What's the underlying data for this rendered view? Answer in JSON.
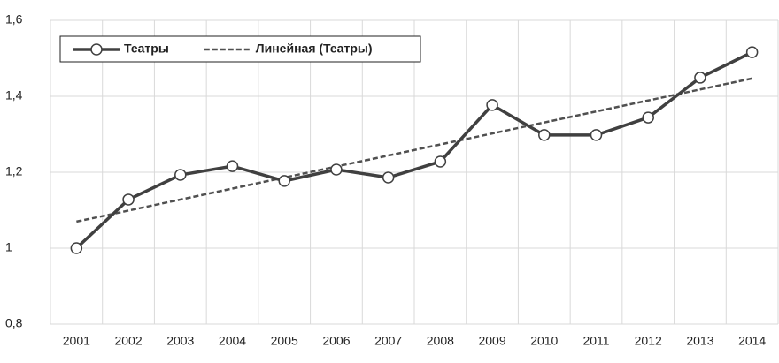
{
  "chart_data": {
    "type": "line",
    "categories": [
      "2001",
      "2002",
      "2003",
      "2004",
      "2005",
      "2006",
      "2007",
      "2008",
      "2009",
      "2010",
      "2011",
      "2012",
      "2013",
      "2014"
    ],
    "series": [
      {
        "name": "Театры",
        "color": "#404040",
        "style": "solid",
        "marker": "circle",
        "values": [
          1.0,
          1.128,
          1.193,
          1.216,
          1.177,
          1.207,
          1.186,
          1.228,
          1.377,
          1.298,
          1.298,
          1.344,
          1.449,
          1.516
        ]
      },
      {
        "name": "Линейная (Театры)",
        "color": "#505050",
        "style": "dashed",
        "values": [
          1.07,
          1.099,
          1.128,
          1.157,
          1.186,
          1.215,
          1.244,
          1.273,
          1.302,
          1.331,
          1.36,
          1.389,
          1.418,
          1.447
        ]
      }
    ],
    "ylim": [
      0.8,
      1.6
    ],
    "yticks": [
      {
        "value": 0.8,
        "label": "0,8"
      },
      1,
      {
        "value": 1.2,
        "label": "1,2"
      },
      {
        "value": 1.4,
        "label": "1,4"
      },
      {
        "value": 1.6,
        "label": "1,6"
      }
    ],
    "grid": true,
    "legend": "top-left"
  }
}
